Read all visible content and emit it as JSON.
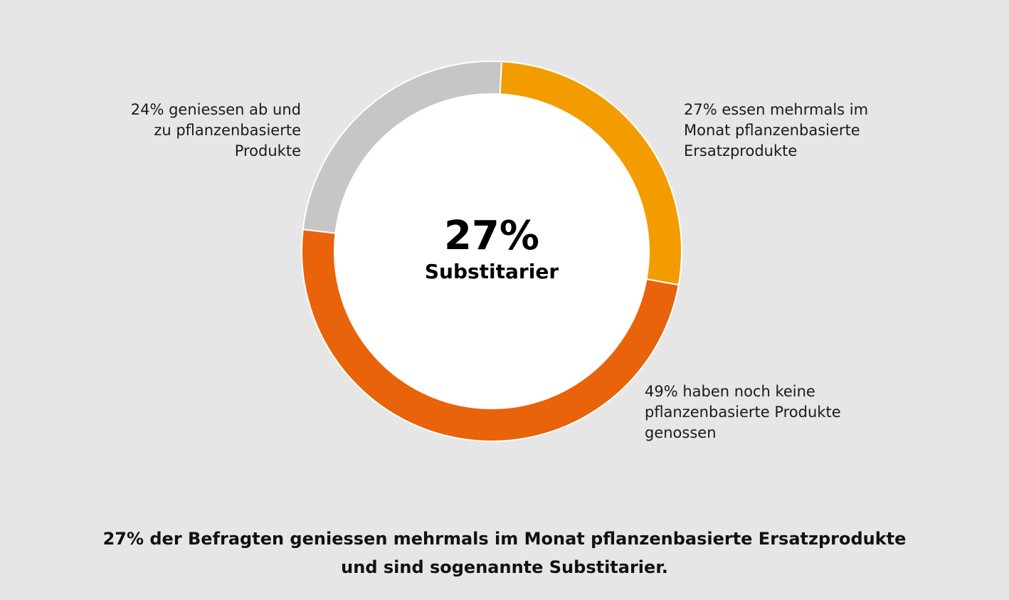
{
  "chart_data": {
    "type": "pie",
    "variant": "donut",
    "slices": [
      {
        "label": "27% essen mehrmals im Monat pflanzenbasierte Ersatzprodukte",
        "value": 27,
        "color": "#f39c00"
      },
      {
        "label": "49% haben noch keine pflanzenbasierte Produkte genossen",
        "value": 49,
        "color": "#e8630a"
      },
      {
        "label": "24% geniessen ab und zu pflanzenbasierte Produkte",
        "value": 24,
        "color": "#c6c6c6"
      }
    ],
    "center": {
      "value": "27%",
      "label": "Substitarier"
    }
  },
  "labels": {
    "left": [
      "24% geniessen ab und",
      "zu pflanzenbasierte",
      "Produkte"
    ],
    "right_top": [
      "27% essen mehrmals im",
      "Monat pflanzenbasierte",
      "Ersatzprodukte"
    ],
    "right_bottom": [
      "49% haben noch keine",
      "pflanzenbasierte Produkte",
      "genossen"
    ]
  },
  "caption": [
    "27% der Befragten geniessen mehrmals im Monat pflanzenbasierte Ersatzprodukte",
    "und sind sogenannte Substitarier."
  ],
  "colors": {
    "background": "#e6e6e6",
    "slice_orange_light": "#f39c00",
    "slice_orange_dark": "#e8630a",
    "slice_grey": "#c6c6c6",
    "center_fill": "#ffffff"
  }
}
